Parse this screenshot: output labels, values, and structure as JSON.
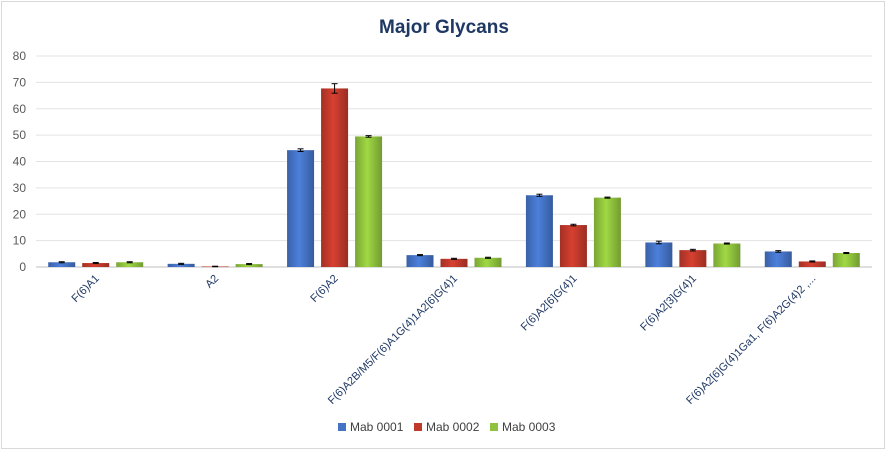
{
  "chart_data": {
    "type": "bar",
    "title": "Major Glycans",
    "xlabel": "",
    "ylabel": "",
    "ylim": [
      0,
      80
    ],
    "yticks": [
      0,
      10,
      20,
      30,
      40,
      50,
      60,
      70,
      80
    ],
    "grid": true,
    "legend": "bottom",
    "categories": [
      "F(6)A1",
      "A2",
      "F(6)A2",
      "F(6)A2B/M5/F(6)A1G(4)1A2[6]G(4)1",
      "F(6)A2[6]G(4)1",
      "F(6)A2[3]G(4)1",
      "F(6)A2[6]G(4)1Ga1, F(6)A2G(4)2 ,..."
    ],
    "series": [
      {
        "name": "Mab 0001",
        "color": "#4472c4",
        "values": [
          1.8,
          1.2,
          44.3,
          4.5,
          27.2,
          9.3,
          5.9
        ],
        "errors": [
          0.2,
          0.2,
          0.5,
          0.2,
          0.4,
          0.5,
          0.3
        ]
      },
      {
        "name": "Mab 0002",
        "color": "#c0392b",
        "values": [
          1.5,
          0.2,
          67.7,
          3.1,
          15.9,
          6.4,
          2.1
        ],
        "errors": [
          0.2,
          0.1,
          1.8,
          0.2,
          0.3,
          0.3,
          0.2
        ]
      },
      {
        "name": "Mab 0003",
        "color": "#8fc23d",
        "values": [
          1.8,
          1.1,
          49.5,
          3.5,
          26.3,
          8.9,
          5.3
        ],
        "errors": [
          0.2,
          0.2,
          0.3,
          0.2,
          0.2,
          0.2,
          0.2
        ]
      }
    ]
  }
}
